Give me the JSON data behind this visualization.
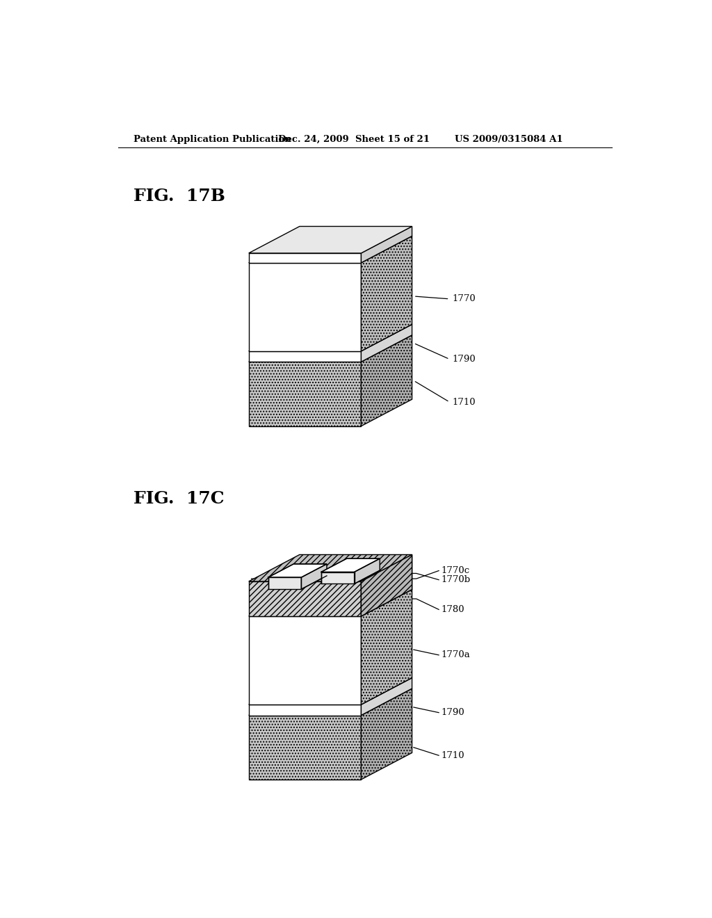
{
  "bg_color": "#ffffff",
  "header_text": "Patent Application Publication",
  "header_date": "Dec. 24, 2009  Sheet 15 of 21",
  "header_patent": "US 2009/0315084 A1",
  "fig1_label": "FIG.  17B",
  "fig2_label": "FIG.  17C",
  "lw": 1.0,
  "lc": "#000000",
  "stipple_color": "#c8c8c8",
  "white": "#ffffff",
  "light_gray": "#e0e0e0",
  "med_gray": "#b8b8b8",
  "hatch_gray": "#cccccc"
}
